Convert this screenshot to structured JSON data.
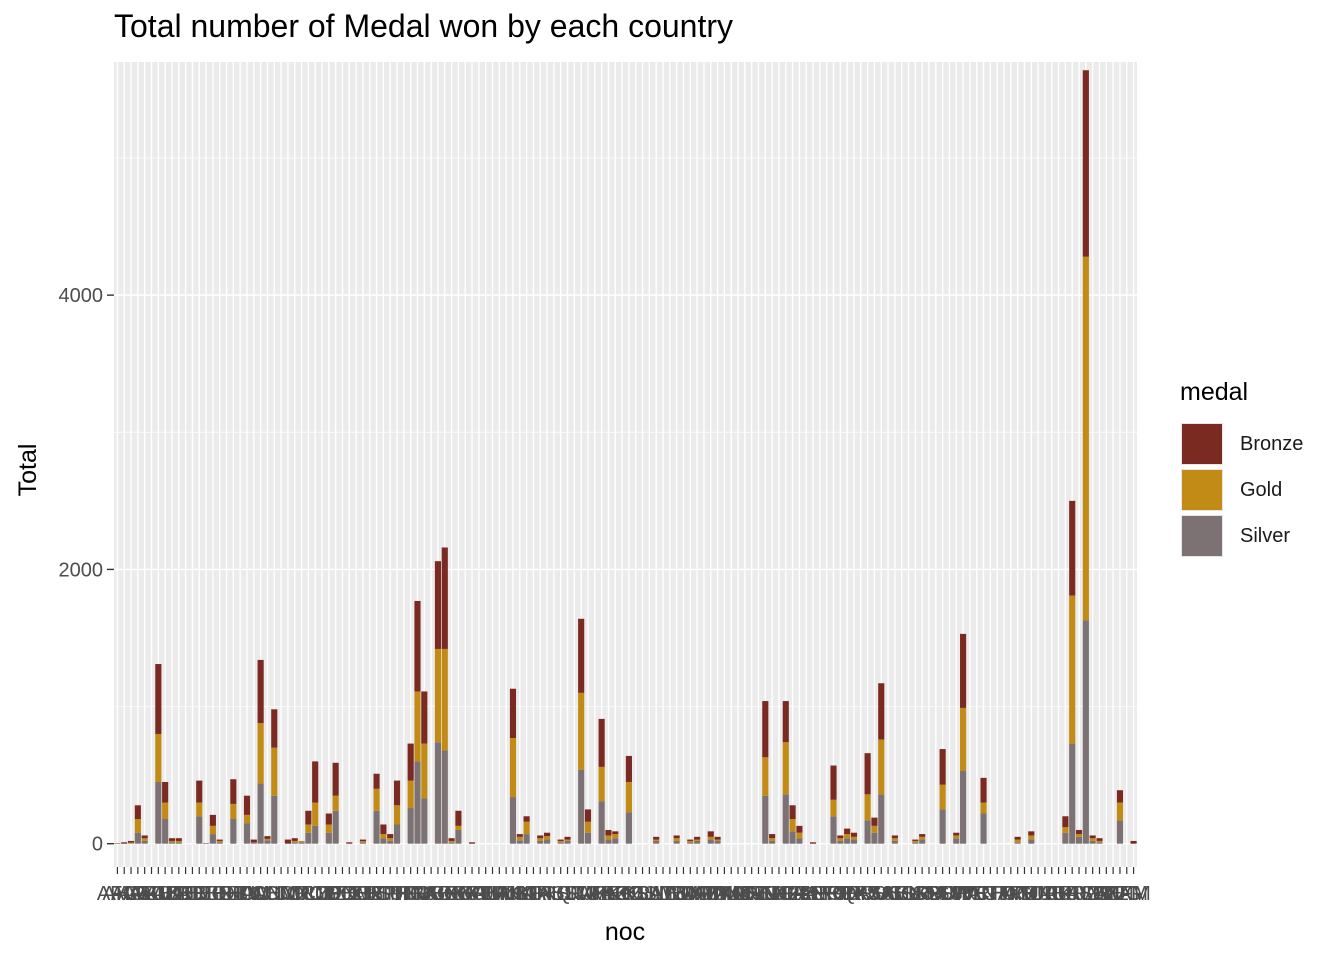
{
  "chart_data": {
    "type": "bar",
    "stacked": true,
    "title": "Total number of Medal won by each country",
    "xlabel": "noc",
    "ylabel": "Total",
    "ylim": [
      -170,
      5700
    ],
    "yticks": [
      0,
      2000,
      4000
    ],
    "grid": true,
    "legend_position": "right",
    "legend": {
      "title": "medal",
      "items": [
        {
          "name": "Bronze",
          "color": "#7b2a22"
        },
        {
          "name": "Gold",
          "color": "#c18b16"
        },
        {
          "name": "Silver",
          "color": "#7c7274"
        }
      ]
    },
    "categories": [
      "AFG",
      "AHO",
      "ALG",
      "ANZ",
      "ARG",
      "ARM",
      "AUS",
      "AUT",
      "AZE",
      "BAH",
      "BAR",
      "BDI",
      "BEL",
      "BER",
      "BLR",
      "BOH",
      "BOT",
      "BRA",
      "BRN",
      "BUL",
      "BWI",
      "CAN",
      "CHI",
      "CHN",
      "CIV",
      "CMR",
      "COL",
      "CRC",
      "CRO",
      "CUB",
      "CYP",
      "CZE",
      "DEN",
      "DJI",
      "DOM",
      "ECU",
      "EGY",
      "ERI",
      "ESP",
      "EST",
      "ETH",
      "EUN",
      "FIJ",
      "FIN",
      "FRA",
      "FRG",
      "GAB",
      "GBR",
      "GDR",
      "GEO",
      "GER",
      "GHA",
      "GRE",
      "GRN",
      "GUA",
      "GUY",
      "HAI",
      "HKG",
      "HUN",
      "INA",
      "IND",
      "IOA",
      "IRI",
      "IRL",
      "IRQ",
      "ISL",
      "ISR",
      "ISV",
      "ITA",
      "JAM",
      "JOR",
      "JPN",
      "KAZ",
      "KEN",
      "KGZ",
      "KOR",
      "KOS",
      "KSA",
      "KUW",
      "LAT",
      "LIB",
      "LIE",
      "LTU",
      "LUX",
      "MAR",
      "MAS",
      "MDA",
      "MEX",
      "MGL",
      "MKD",
      "MNE",
      "MON",
      "MOZ",
      "MRI",
      "NAM",
      "NED",
      "NGR",
      "NIG",
      "NOR",
      "NZL",
      "PAK",
      "PAN",
      "PAR",
      "PER",
      "PHI",
      "POL",
      "POR",
      "PRK",
      "PUR",
      "QAT",
      "ROU",
      "RSA",
      "RUS",
      "SAM",
      "SCG",
      "SEN",
      "SGP",
      "SLO",
      "SRB",
      "SRI",
      "SUD",
      "SUI",
      "SUR",
      "SVK",
      "SWE",
      "SYR",
      "TAN",
      "TCH",
      "TGA",
      "THA",
      "TJK",
      "TOG",
      "TPE",
      "TTO",
      "TUN",
      "TUR",
      "UAE",
      "UAR",
      "UGA",
      "UKR",
      "URS",
      "URU",
      "USA",
      "UZB",
      "VEN",
      "VIE",
      "WIF",
      "YUG",
      "ZAM",
      "ZIM"
    ],
    "series": [
      {
        "name": "Silver",
        "values": [
          0,
          0,
          4,
          80,
          20,
          0,
          450,
          180,
          10,
          10,
          0,
          0,
          200,
          0,
          70,
          10,
          0,
          180,
          0,
          150,
          10,
          440,
          25,
          350,
          0,
          0,
          10,
          10,
          80,
          130,
          0,
          80,
          240,
          0,
          0,
          0,
          8,
          0,
          240,
          40,
          20,
          140,
          0,
          260,
          600,
          330,
          0,
          740,
          680,
          10,
          100,
          0,
          0,
          0,
          0,
          0,
          0,
          0,
          340,
          25,
          70,
          0,
          20,
          30,
          0,
          10,
          20,
          0,
          540,
          80,
          0,
          310,
          30,
          40,
          0,
          230,
          0,
          0,
          0,
          20,
          0,
          0,
          20,
          0,
          10,
          20,
          0,
          30,
          20,
          0,
          0,
          0,
          0,
          0,
          0,
          350,
          20,
          0,
          360,
          90,
          40,
          0,
          0,
          0,
          0,
          200,
          20,
          40,
          30,
          0,
          170,
          80,
          360,
          0,
          20,
          0,
          0,
          10,
          30,
          0,
          0,
          250,
          0,
          40,
          530,
          0,
          0,
          220,
          0,
          0,
          0,
          0,
          10,
          0,
          30,
          0,
          0,
          0,
          0,
          80,
          730,
          50,
          1630,
          20,
          10,
          0,
          0,
          170,
          0,
          0
        ]
      },
      {
        "name": "Gold",
        "values": [
          0,
          0,
          4,
          100,
          20,
          0,
          350,
          120,
          10,
          10,
          0,
          0,
          100,
          0,
          60,
          10,
          0,
          110,
          0,
          60,
          0,
          440,
          10,
          350,
          0,
          0,
          10,
          10,
          60,
          170,
          0,
          60,
          110,
          0,
          0,
          0,
          10,
          0,
          160,
          30,
          20,
          140,
          0,
          200,
          510,
          400,
          0,
          680,
          740,
          10,
          30,
          0,
          0,
          0,
          0,
          0,
          0,
          0,
          430,
          25,
          90,
          0,
          20,
          25,
          0,
          10,
          10,
          0,
          560,
          80,
          0,
          250,
          30,
          30,
          0,
          220,
          0,
          0,
          0,
          10,
          0,
          0,
          20,
          0,
          10,
          10,
          0,
          20,
          10,
          0,
          0,
          0,
          0,
          0,
          0,
          280,
          20,
          0,
          380,
          90,
          40,
          0,
          0,
          0,
          0,
          120,
          20,
          30,
          20,
          0,
          190,
          50,
          400,
          0,
          20,
          0,
          0,
          10,
          20,
          0,
          0,
          180,
          0,
          20,
          460,
          0,
          0,
          80,
          0,
          0,
          0,
          0,
          20,
          0,
          30,
          0,
          0,
          0,
          0,
          40,
          1080,
          20,
          2650,
          20,
          10,
          0,
          0,
          130,
          0,
          0
        ]
      },
      {
        "name": "Bronze",
        "values": [
          2,
          10,
          12,
          100,
          20,
          0,
          510,
          150,
          20,
          20,
          0,
          0,
          160,
          2,
          80,
          10,
          0,
          180,
          0,
          140,
          20,
          460,
          20,
          280,
          0,
          30,
          20,
          0,
          100,
          300,
          0,
          80,
          240,
          0,
          10,
          0,
          12,
          0,
          110,
          70,
          30,
          180,
          0,
          270,
          660,
          380,
          0,
          640,
          740,
          20,
          110,
          0,
          10,
          0,
          0,
          0,
          0,
          0,
          360,
          20,
          40,
          0,
          20,
          25,
          0,
          10,
          20,
          0,
          540,
          90,
          0,
          350,
          40,
          20,
          0,
          190,
          0,
          0,
          0,
          20,
          0,
          0,
          20,
          0,
          10,
          20,
          0,
          40,
          20,
          0,
          0,
          0,
          0,
          0,
          0,
          410,
          30,
          0,
          300,
          100,
          50,
          0,
          10,
          0,
          0,
          250,
          20,
          40,
          30,
          0,
          300,
          60,
          410,
          0,
          20,
          0,
          0,
          10,
          20,
          0,
          0,
          260,
          0,
          20,
          540,
          0,
          0,
          180,
          0,
          0,
          0,
          0,
          20,
          0,
          30,
          0,
          0,
          0,
          0,
          80,
          690,
          30,
          1360,
          20,
          20,
          0,
          0,
          90,
          0,
          20
        ]
      }
    ]
  }
}
